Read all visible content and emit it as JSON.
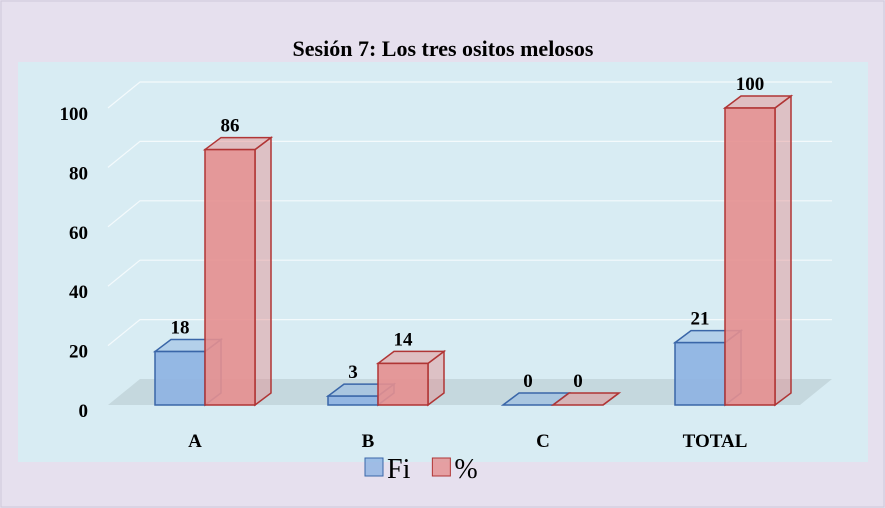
{
  "chart_data": {
    "type": "bar3d",
    "title": "Sesión 7: Los tres ositos melosos",
    "categories": [
      "A",
      "B",
      "C",
      "TOTAL"
    ],
    "series": [
      {
        "name": "Fi",
        "color": "#8db3e2",
        "edge": "#3a66a8",
        "values": [
          18,
          3,
          0,
          21
        ]
      },
      {
        "name": "%",
        "color": "#e58f8f",
        "edge": "#b03535",
        "values": [
          86,
          14,
          0,
          100
        ]
      }
    ],
    "ylim": [
      0,
      100
    ],
    "yticks": [
      0,
      20,
      40,
      60,
      80,
      100
    ],
    "grid": true,
    "legend": "bottom"
  }
}
